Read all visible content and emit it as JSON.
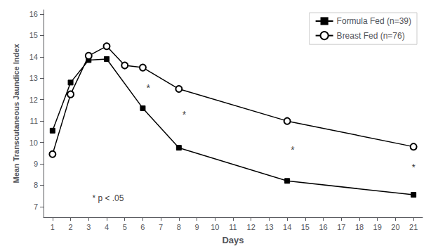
{
  "chart_data": {
    "type": "line",
    "xlabel": "Days",
    "ylabel": "Mean Transcutaneous Jaundice Index",
    "series": [
      {
        "name": "Formula Fed (n=39)",
        "color": "#000000",
        "marker": "square",
        "x": [
          1,
          2,
          3,
          4,
          6,
          8,
          14,
          21
        ],
        "values": [
          10.55,
          12.8,
          13.85,
          13.9,
          11.6,
          9.75,
          8.2,
          7.55
        ]
      },
      {
        "name": "Breast Fed (n=76)",
        "color": "#000000",
        "marker": "circle",
        "x": [
          1,
          2,
          3,
          4,
          5,
          6,
          8,
          14,
          21
        ],
        "values": [
          9.45,
          12.25,
          14.05,
          14.5,
          13.6,
          13.5,
          12.5,
          11.0,
          9.8
        ]
      }
    ],
    "annotations": [
      {
        "text": "*",
        "x": 6.3,
        "y": 12.55
      },
      {
        "text": "*",
        "x": 8.3,
        "y": 11.3
      },
      {
        "text": "*",
        "x": 14.3,
        "y": 9.65
      },
      {
        "text": "*",
        "x": 21.0,
        "y": 8.85
      },
      {
        "text": "* p < .05",
        "x": 3.2,
        "y": 7.2
      }
    ],
    "xlim": [
      0.5,
      21.5
    ],
    "xticks": [
      1,
      2,
      3,
      4,
      5,
      6,
      7,
      8,
      9,
      10,
      11,
      12,
      13,
      14,
      15,
      16,
      17,
      18,
      19,
      20,
      21
    ],
    "ylim": [
      6.5,
      16.2
    ],
    "yticks": [
      7,
      8,
      9,
      10,
      11,
      12,
      13,
      14,
      15,
      16
    ],
    "legend": "upper right",
    "grid": false
  }
}
